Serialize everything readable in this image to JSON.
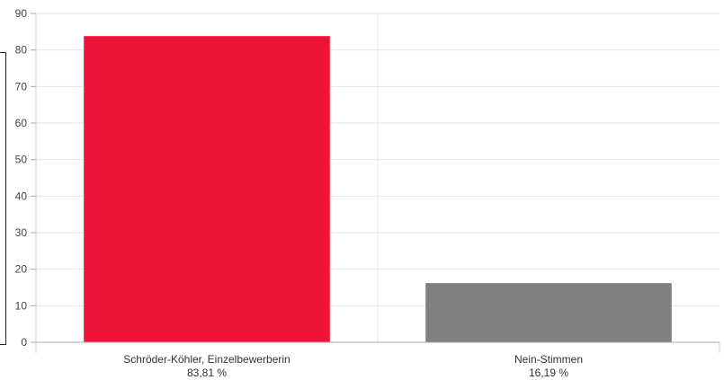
{
  "chart_data": {
    "type": "bar",
    "categories": [
      "Schröder-Köhler, Einzelbewerberin",
      "Nein-Stimmen"
    ],
    "category_sublabels": [
      "83,81 %",
      "16,19 %"
    ],
    "values": [
      83.81,
      16.19
    ],
    "colors": [
      "#ee1438",
      "#808080"
    ],
    "ylim": [
      0,
      90
    ],
    "yticks": [
      "0",
      "10",
      "20",
      "30",
      "40",
      "50",
      "60",
      "70",
      "80",
      "90"
    ],
    "grid": true
  }
}
